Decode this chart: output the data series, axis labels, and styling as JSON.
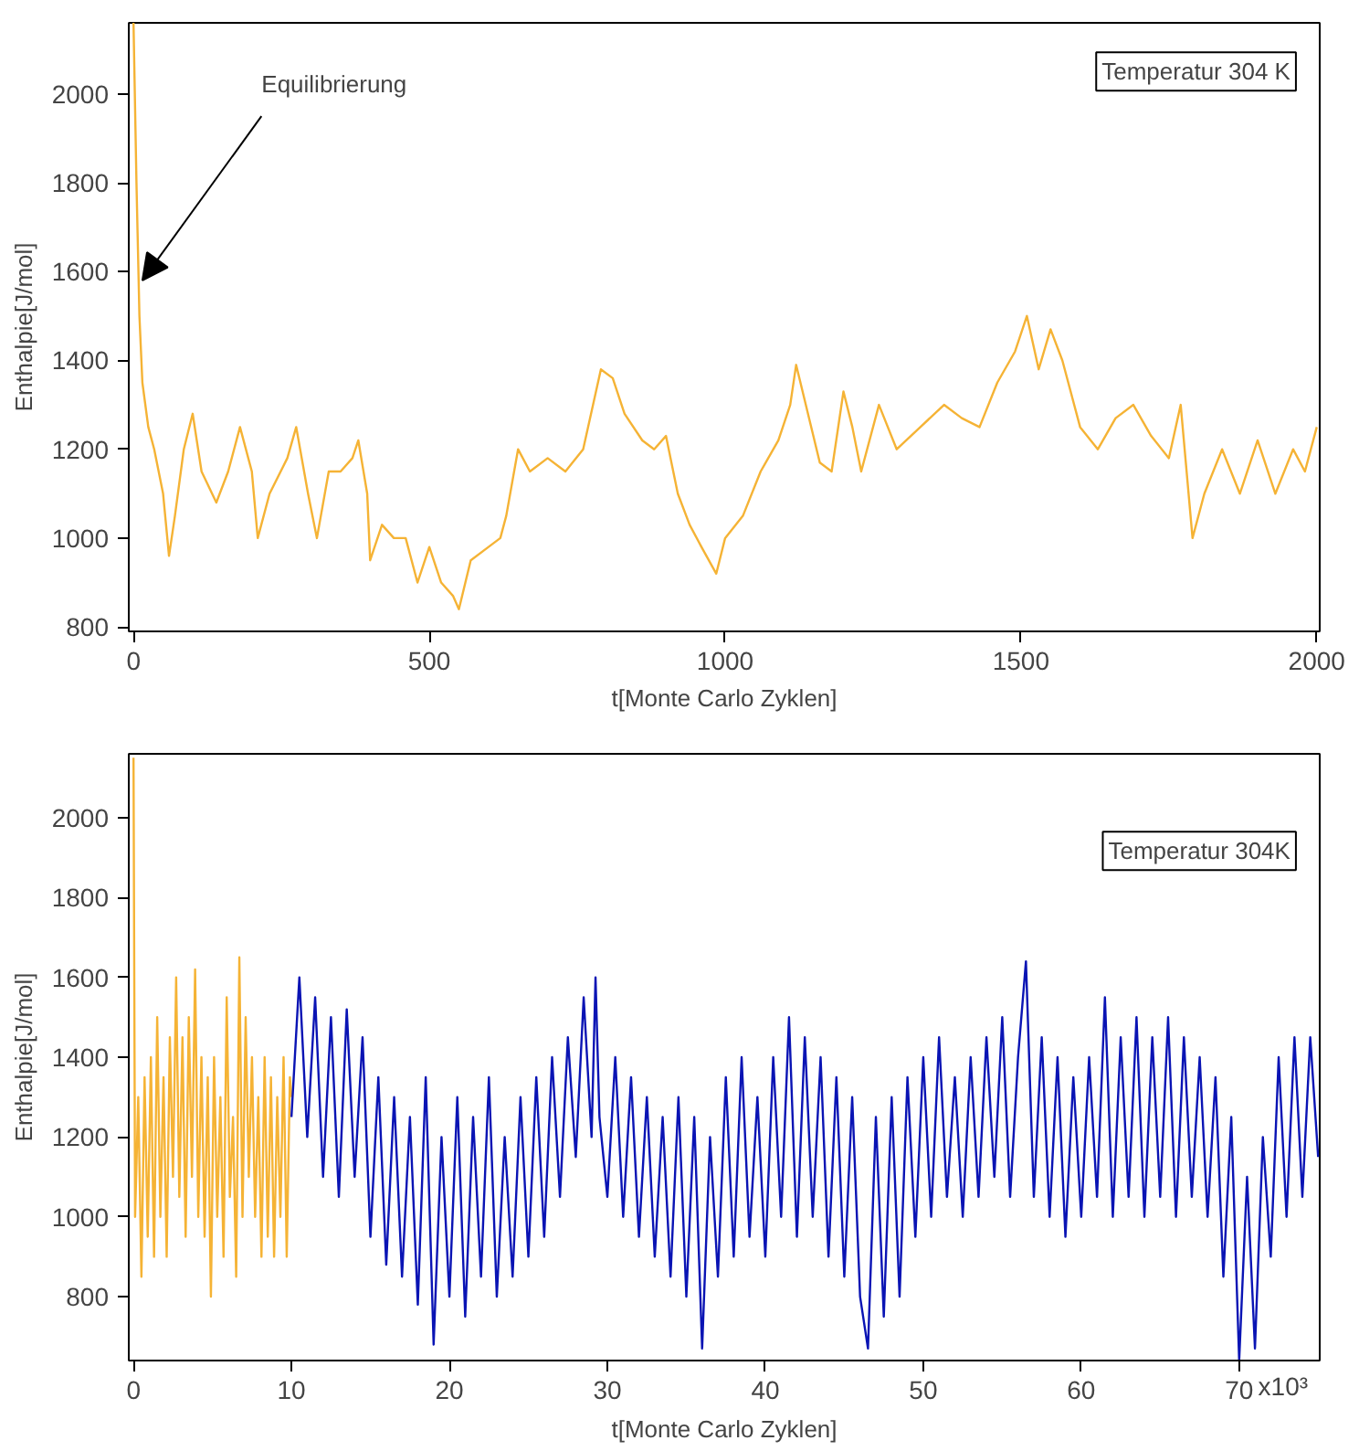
{
  "chart_data": [
    {
      "type": "line",
      "xlabel": "t[Monte Carlo Zyklen]",
      "ylabel": "Enthalpie[J/mol]",
      "xlim": [
        -8,
        2005
      ],
      "ylim": [
        790,
        2160
      ],
      "xticks": [
        0,
        500,
        1000,
        1500,
        2000
      ],
      "yticks": [
        800,
        1000,
        1200,
        1400,
        1600,
        1800,
        2000
      ],
      "grid": false,
      "annotations": [
        {
          "text": "Equilibrierung",
          "x": 15,
          "y": 1580
        },
        "Temperatur 304 K"
      ],
      "series": [
        {
          "color": "#f5b335",
          "x": [
            0,
            5,
            10,
            15,
            25,
            35,
            50,
            60,
            70,
            85,
            100,
            115,
            140,
            160,
            180,
            200,
            210,
            230,
            260,
            275,
            295,
            310,
            330,
            350,
            370,
            380,
            395,
            400,
            420,
            440,
            460,
            480,
            500,
            520,
            540,
            550,
            570,
            600,
            620,
            630,
            650,
            670,
            700,
            730,
            760,
            790,
            810,
            830,
            860,
            880,
            900,
            920,
            940,
            960,
            985,
            1000,
            1030,
            1060,
            1090,
            1110,
            1120,
            1140,
            1160,
            1180,
            1200,
            1215,
            1230,
            1260,
            1290,
            1330,
            1370,
            1400,
            1430,
            1460,
            1490,
            1510,
            1530,
            1550,
            1570,
            1600,
            1630,
            1660,
            1690,
            1720,
            1750,
            1770,
            1790,
            1810,
            1840,
            1870,
            1900,
            1930,
            1960,
            1980,
            2000
          ],
          "values": [
            2160,
            1800,
            1500,
            1350,
            1250,
            1200,
            1100,
            960,
            1050,
            1200,
            1280,
            1150,
            1080,
            1150,
            1250,
            1150,
            1000,
            1100,
            1180,
            1250,
            1100,
            1000,
            1150,
            1150,
            1180,
            1220,
            1100,
            950,
            1030,
            1000,
            1000,
            900,
            980,
            900,
            870,
            840,
            950,
            980,
            1000,
            1050,
            1200,
            1150,
            1180,
            1150,
            1200,
            1380,
            1360,
            1280,
            1220,
            1200,
            1230,
            1100,
            1030,
            980,
            920,
            1000,
            1050,
            1150,
            1220,
            1300,
            1390,
            1280,
            1170,
            1150,
            1330,
            1250,
            1150,
            1300,
            1200,
            1250,
            1300,
            1270,
            1250,
            1350,
            1420,
            1500,
            1380,
            1470,
            1400,
            1250,
            1200,
            1270,
            1300,
            1230,
            1180,
            1300,
            1000,
            1100,
            1200,
            1100,
            1220,
            1100,
            1200,
            1150,
            1250
          ]
        }
      ]
    },
    {
      "type": "line",
      "xlabel": "t[Monte Carlo Zyklen]",
      "ylabel": "Enthalpie[J/mol]",
      "xlim": [
        -0.3,
        75.1
      ],
      "ylim": [
        640,
        2160
      ],
      "xticks": [
        0,
        10,
        20,
        30,
        40,
        50,
        60,
        70
      ],
      "yticks": [
        800,
        1000,
        1200,
        1400,
        1600,
        1800,
        2000
      ],
      "grid": false,
      "annotations": [
        "Temperatur 304K",
        "x10³"
      ],
      "series": [
        {
          "color": "#f5b335",
          "x": [
            0,
            0.1,
            0.3,
            0.5,
            0.7,
            0.9,
            1.1,
            1.3,
            1.5,
            1.7,
            1.9,
            2.1,
            2.3,
            2.5,
            2.7,
            2.9,
            3.1,
            3.3,
            3.5,
            3.7,
            3.9,
            4.1,
            4.3,
            4.5,
            4.7,
            4.9,
            5.1,
            5.3,
            5.5,
            5.7,
            5.9,
            6.1,
            6.3,
            6.5,
            6.7,
            6.9,
            7.1,
            7.3,
            7.5,
            7.7,
            7.9,
            8.1,
            8.3,
            8.5,
            8.7,
            8.9,
            9.1,
            9.3,
            9.5,
            9.7,
            9.9,
            10
          ],
          "values": [
            2150,
            1000,
            1300,
            850,
            1350,
            950,
            1400,
            900,
            1500,
            1000,
            1350,
            900,
            1450,
            1100,
            1600,
            1050,
            1450,
            950,
            1500,
            1100,
            1620,
            1000,
            1400,
            950,
            1350,
            800,
            1400,
            1000,
            1300,
            900,
            1550,
            1050,
            1250,
            850,
            1650,
            1000,
            1500,
            1100,
            1400,
            1000,
            1300,
            900,
            1400,
            950,
            1350,
            900,
            1300,
            1000,
            1400,
            900,
            1350,
            1300
          ]
        },
        {
          "color": "#0a14b4",
          "x": [
            10,
            10.5,
            11,
            11.5,
            12,
            12.5,
            13,
            13.5,
            14,
            14.5,
            15,
            15.5,
            16,
            16.5,
            17,
            17.5,
            18,
            18.5,
            19,
            19.5,
            20,
            20.5,
            21,
            21.5,
            22,
            22.5,
            23,
            23.5,
            24,
            24.5,
            25,
            25.5,
            26,
            26.5,
            27,
            27.5,
            28,
            28.5,
            29,
            29.25,
            29.5,
            30,
            30.5,
            31,
            31.5,
            32,
            32.5,
            33,
            33.5,
            34,
            34.5,
            35,
            35.5,
            36,
            36.5,
            37,
            37.5,
            38,
            38.5,
            39,
            39.5,
            40,
            40.5,
            41,
            41.5,
            42,
            42.5,
            43,
            43.5,
            44,
            44.5,
            45,
            45.5,
            46,
            46.5,
            47,
            47.5,
            48,
            48.5,
            49,
            49.5,
            50,
            50.5,
            51,
            51.5,
            52,
            52.5,
            53,
            53.5,
            54,
            54.5,
            55,
            55.5,
            56,
            56.5,
            57,
            57.5,
            58,
            58.5,
            59,
            59.5,
            60,
            60.5,
            61,
            61.5,
            62,
            62.5,
            63,
            63.5,
            64,
            64.5,
            65,
            65.5,
            66,
            66.5,
            67,
            67.5,
            68,
            68.5,
            69,
            69.5,
            70,
            70.5,
            71,
            71.5,
            72,
            72.5,
            73,
            73.5,
            74,
            74.5,
            75
          ],
          "values": [
            1250,
            1600,
            1200,
            1550,
            1100,
            1500,
            1050,
            1520,
            1100,
            1450,
            950,
            1350,
            880,
            1300,
            850,
            1250,
            780,
            1350,
            680,
            1200,
            800,
            1300,
            750,
            1250,
            850,
            1350,
            800,
            1200,
            850,
            1300,
            900,
            1350,
            950,
            1400,
            1050,
            1450,
            1150,
            1550,
            1200,
            1600,
            1250,
            1050,
            1400,
            1000,
            1350,
            950,
            1300,
            900,
            1250,
            850,
            1300,
            800,
            1250,
            670,
            1200,
            850,
            1350,
            900,
            1400,
            950,
            1300,
            900,
            1400,
            1000,
            1500,
            950,
            1450,
            1000,
            1400,
            900,
            1350,
            850,
            1300,
            800,
            670,
            1250,
            750,
            1300,
            800,
            1350,
            950,
            1400,
            1000,
            1450,
            1050,
            1350,
            1000,
            1400,
            1050,
            1450,
            1100,
            1500,
            1050,
            1400,
            1640,
            1050,
            1450,
            1000,
            1400,
            950,
            1350,
            1000,
            1400,
            1050,
            1550,
            1000,
            1450,
            1050,
            1500,
            1000,
            1450,
            1050,
            1500,
            1000,
            1450,
            1050,
            1400,
            1000,
            1350,
            850,
            1250,
            640,
            1100,
            670,
            1200,
            900,
            1400,
            1000,
            1450,
            1050,
            1450,
            1150
          ]
        }
      ]
    }
  ]
}
